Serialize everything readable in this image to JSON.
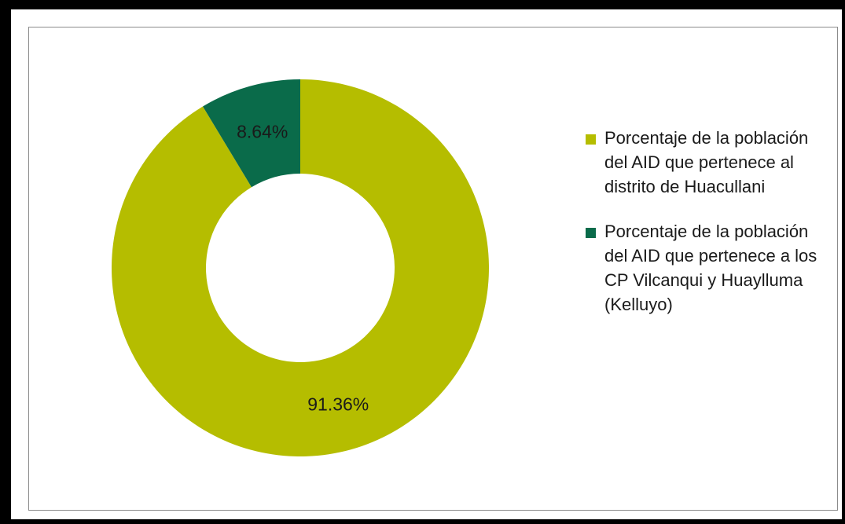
{
  "chart_data": {
    "type": "pie",
    "variant": "donut",
    "categories": [
      "Porcentaje de la población del AID que pertenece al distrito de Huacullani",
      "Porcentaje de la población del AID que pertenece a los CP Vilcanqui y Huaylluma (Kelluyo)"
    ],
    "values": [
      91.36,
      8.64
    ],
    "data_labels": [
      "91.36%",
      "8.64%"
    ],
    "colors": [
      "#b5bd00",
      "#0a6b4a"
    ],
    "legend": "right"
  }
}
